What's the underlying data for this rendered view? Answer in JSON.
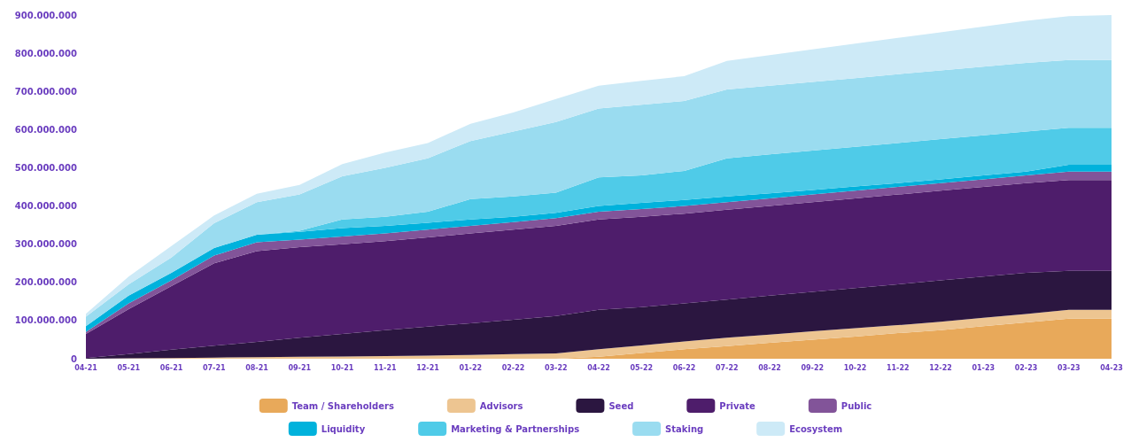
{
  "chart_data": {
    "type": "area",
    "stacked": true,
    "legend": "bottom",
    "grid": false,
    "marker": "none",
    "categories": [
      "04-21",
      "05-21",
      "06-21",
      "07-21",
      "08-21",
      "09-21",
      "10-21",
      "11-21",
      "12-21",
      "01-22",
      "02-22",
      "03-22",
      "04-22",
      "05-22",
      "06-22",
      "07-22",
      "08-22",
      "09-22",
      "10-22",
      "11-22",
      "12-22",
      "01-23",
      "02-23",
      "03-23",
      "04-23"
    ],
    "ylim": [
      0,
      900000000
    ],
    "yticks": [
      {
        "value": 0,
        "label": "0"
      },
      {
        "value": 100000000,
        "label": "100.000.000"
      },
      {
        "value": 200000000,
        "label": "200.000.000"
      },
      {
        "value": 300000000,
        "label": "300.000.000"
      },
      {
        "value": 400000000,
        "label": "400.000.000"
      },
      {
        "value": 500000000,
        "label": "500.000.000"
      },
      {
        "value": 600000000,
        "label": "600.000.000"
      },
      {
        "value": 700000000,
        "label": "700.000.000"
      },
      {
        "value": 800000000,
        "label": "800.000.000"
      },
      {
        "value": 900000000,
        "label": "900.000.000"
      }
    ],
    "series": [
      {
        "name": "Team / Shareholders",
        "color": "#e8a95a",
        "values": [
          0,
          0,
          0,
          0,
          0,
          0,
          0,
          0,
          0,
          0,
          0,
          0,
          5000000,
          15000000,
          25000000,
          33000000,
          42000000,
          50000000,
          58000000,
          67000000,
          75000000,
          85000000,
          95000000,
          105000000,
          105000000
        ]
      },
      {
        "name": "Advisors",
        "color": "#edc591",
        "values": [
          0,
          1000000,
          2000000,
          3000000,
          4000000,
          5000000,
          6000000,
          7000000,
          8000000,
          10000000,
          12000000,
          14000000,
          20000000,
          20000000,
          20000000,
          22000000,
          21000000,
          22000000,
          22000000,
          21000000,
          22000000,
          22000000,
          22000000,
          23000000,
          23000000
        ]
      },
      {
        "name": "Seed",
        "color": "#2b1640",
        "values": [
          2000000,
          11000000,
          22000000,
          31000000,
          40000000,
          50000000,
          59000000,
          68000000,
          76000000,
          83000000,
          90000000,
          98000000,
          103000000,
          100000000,
          100000000,
          100000000,
          102000000,
          103000000,
          105000000,
          107000000,
          108000000,
          108000000,
          108000000,
          102000000,
          102000000
        ]
      },
      {
        "name": "Private",
        "color": "#4e1d6b",
        "values": [
          63000000,
          118000000,
          166000000,
          216000000,
          238000000,
          237000000,
          235000000,
          233000000,
          234000000,
          235000000,
          236000000,
          236000000,
          237000000,
          237000000,
          235000000,
          235000000,
          235000000,
          235000000,
          235000000,
          235000000,
          235000000,
          235000000,
          235000000,
          238000000,
          238000000
        ]
      },
      {
        "name": "Public",
        "color": "#825499",
        "values": [
          5000000,
          15000000,
          15000000,
          20000000,
          23000000,
          20000000,
          20000000,
          20000000,
          20000000,
          20000000,
          20000000,
          20000000,
          20000000,
          20000000,
          20000000,
          20000000,
          20000000,
          20000000,
          20000000,
          20000000,
          20000000,
          20000000,
          20000000,
          22000000,
          22000000
        ]
      },
      {
        "name": "Liquidity",
        "color": "#00b2dc",
        "values": [
          15000000,
          20000000,
          20000000,
          20000000,
          20000000,
          20000000,
          22000000,
          20000000,
          18000000,
          17000000,
          14000000,
          14000000,
          15000000,
          16000000,
          16000000,
          15000000,
          13000000,
          12000000,
          11000000,
          10000000,
          10000000,
          10000000,
          10000000,
          18000000,
          18000000
        ]
      },
      {
        "name": "Marketing & Partnerships",
        "color": "#4fcbe8",
        "values": [
          0,
          0,
          0,
          0,
          0,
          3000000,
          23000000,
          24000000,
          29000000,
          53000000,
          53000000,
          53000000,
          75000000,
          72000000,
          76000000,
          100000000,
          102000000,
          103000000,
          104000000,
          105000000,
          105000000,
          105000000,
          105000000,
          97000000,
          97000000
        ]
      },
      {
        "name": "Staking",
        "color": "#9adcf0",
        "values": [
          25000000,
          30000000,
          40000000,
          65000000,
          85000000,
          95000000,
          113000000,
          128000000,
          140000000,
          152000000,
          170000000,
          185000000,
          180000000,
          185000000,
          183000000,
          180000000,
          180000000,
          180000000,
          180000000,
          180000000,
          180000000,
          180000000,
          180000000,
          177000000,
          177000000
        ]
      },
      {
        "name": "Ecosystem",
        "color": "#cdeaf7",
        "values": [
          8000000,
          20000000,
          30000000,
          20000000,
          22000000,
          25000000,
          32000000,
          40000000,
          40000000,
          45000000,
          50000000,
          60000000,
          60000000,
          63000000,
          65000000,
          75000000,
          80000000,
          85000000,
          90000000,
          95000000,
          100000000,
          105000000,
          110000000,
          115000000,
          118000000
        ]
      }
    ]
  }
}
